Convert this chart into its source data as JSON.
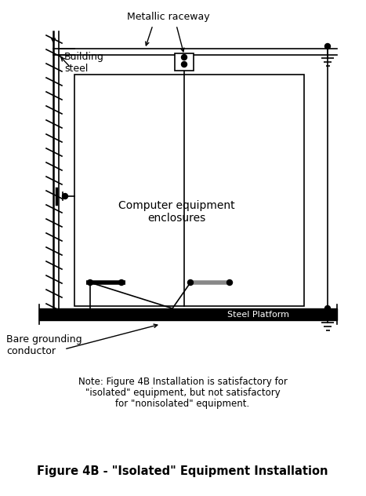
{
  "title": "Figure 4B - \"Isolated\" Equipment Installation",
  "note_line1": "Note: Figure 4B Installation is satisfactory for",
  "note_line2": "\"isolated\" equipment, but not satisfactory",
  "note_line3": "for \"nonisolated\" equipment.",
  "label_metallic": "Metallic raceway",
  "label_building": "Building\nsteel",
  "label_computer": "Computer equipment\nenclosures",
  "label_steel_platform": "Steel Platform",
  "label_bare_grounding": "Bare grounding\nconductor",
  "bg_color": "#ffffff",
  "line_color": "#000000"
}
